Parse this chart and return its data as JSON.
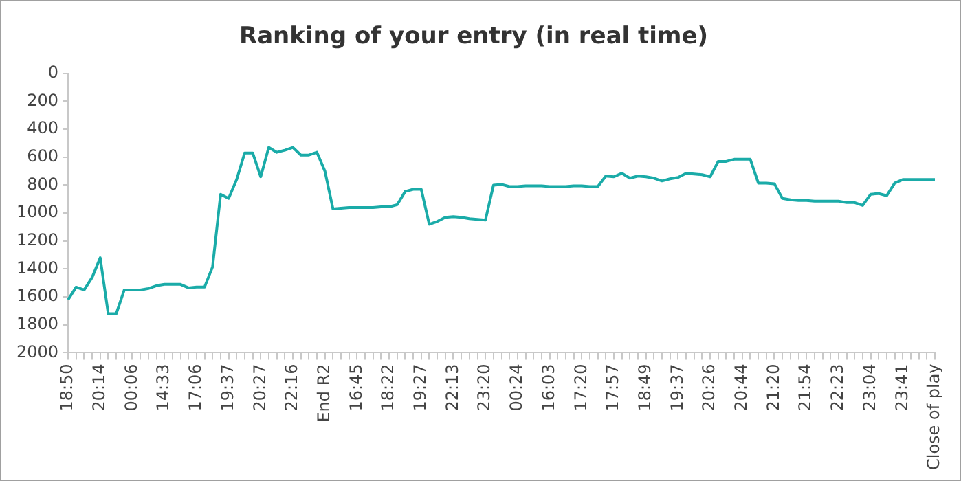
{
  "chart_data": {
    "type": "line",
    "title": "Ranking of your entry (in real time)",
    "categories": [
      "18:50",
      null,
      null,
      null,
      "20:14",
      null,
      null,
      null,
      "00:06",
      null,
      null,
      null,
      "14:33",
      null,
      null,
      null,
      "17:06",
      null,
      null,
      null,
      "19:37",
      null,
      null,
      null,
      "20:27",
      null,
      null,
      null,
      "22:16",
      null,
      null,
      null,
      "End R2",
      null,
      null,
      null,
      "16:45",
      null,
      null,
      null,
      "18:22",
      null,
      null,
      null,
      "19:27",
      null,
      null,
      null,
      "22:13",
      null,
      null,
      null,
      "23:20",
      null,
      null,
      null,
      "00:24",
      null,
      null,
      null,
      "16:03",
      null,
      null,
      null,
      "17:20",
      null,
      null,
      null,
      "17:57",
      null,
      null,
      null,
      "18:49",
      null,
      null,
      null,
      "19:37",
      null,
      null,
      null,
      "20:26",
      null,
      null,
      null,
      "20:44",
      null,
      null,
      null,
      "21:20",
      null,
      null,
      null,
      "21:54",
      null,
      null,
      null,
      "22:23",
      null,
      null,
      null,
      "23:04",
      null,
      null,
      null,
      "23:41",
      null,
      null,
      null,
      "Close of play"
    ],
    "series": [
      {
        "color": "#1aaba8",
        "values": [
          1620,
          1530,
          1550,
          1460,
          1320,
          1720,
          1720,
          1550,
          1550,
          1550,
          1540,
          1520,
          1510,
          1510,
          1510,
          1535,
          1530,
          1530,
          1385,
          865,
          895,
          760,
          570,
          570,
          740,
          530,
          565,
          550,
          530,
          585,
          585,
          565,
          700,
          970,
          965,
          960,
          960,
          960,
          960,
          955,
          955,
          940,
          845,
          830,
          830,
          1080,
          1060,
          1030,
          1025,
          1030,
          1040,
          1045,
          1050,
          800,
          795,
          810,
          810,
          805,
          805,
          805,
          810,
          810,
          810,
          805,
          805,
          810,
          810,
          735,
          740,
          715,
          750,
          735,
          740,
          750,
          770,
          755,
          745,
          715,
          720,
          725,
          740,
          630,
          630,
          615,
          615,
          615,
          785,
          785,
          790,
          895,
          905,
          910,
          910,
          915,
          915,
          915,
          915,
          925,
          925,
          945,
          865,
          860,
          875,
          785,
          760,
          760,
          760,
          760,
          760
        ]
      }
    ],
    "ylim": [
      2000,
      0
    ],
    "yticks": [
      0,
      200,
      400,
      600,
      800,
      1000,
      1200,
      1400,
      1600,
      1800,
      2000
    ],
    "grid": false,
    "legend": false,
    "marker": "none",
    "line_style": "solid"
  }
}
